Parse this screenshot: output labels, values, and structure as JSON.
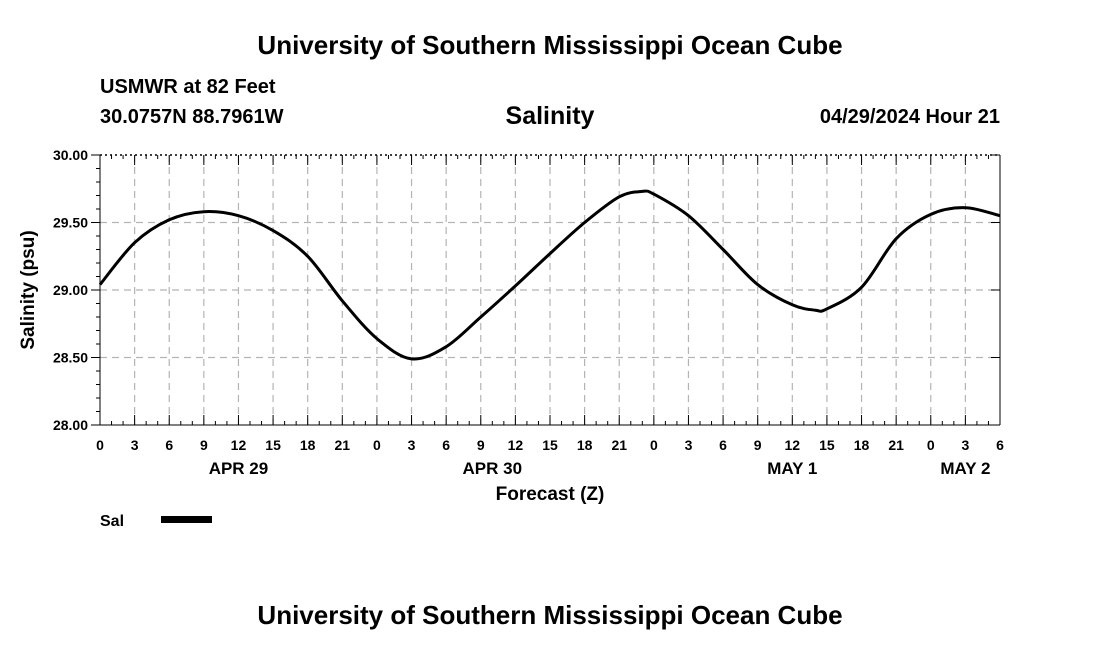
{
  "header": {
    "title": "University of Southern Mississippi Ocean Cube",
    "station": "USMWR at 82 Feet",
    "coords": "30.0757N  88.7961W",
    "datetime": "04/29/2024 Hour 21",
    "footer_title": "University of Southern Mississippi Ocean Cube"
  },
  "chart_data": {
    "type": "line",
    "title": "Salinity",
    "xlabel": "Forecast (Z)",
    "ylabel": "Salinity (psu)",
    "ylim": [
      28.0,
      30.0
    ],
    "xlim": [
      0,
      78
    ],
    "y_ticks": [
      "28.00",
      "28.50",
      "29.00",
      "29.50",
      "30.00"
    ],
    "x_tick_labels": [
      "0",
      "3",
      "6",
      "9",
      "12",
      "15",
      "18",
      "21",
      "0",
      "3",
      "6",
      "9",
      "12",
      "15",
      "18",
      "21",
      "0",
      "3",
      "6",
      "9",
      "12",
      "15",
      "18",
      "21",
      "0",
      "3",
      "6"
    ],
    "date_labels": [
      {
        "label": "APR 29",
        "hour": 12
      },
      {
        "label": "APR 30",
        "hour": 34
      },
      {
        "label": "MAY 1",
        "hour": 60
      },
      {
        "label": "MAY 2",
        "hour": 75
      }
    ],
    "grid": true,
    "series": [
      {
        "name": "Sal",
        "color": "#000000",
        "x": [
          0,
          3,
          6,
          9,
          12,
          15,
          18,
          21,
          24,
          27,
          30,
          33,
          36,
          39,
          42,
          45,
          47,
          48,
          51,
          54,
          57,
          60,
          62,
          63,
          66,
          69,
          72,
          75,
          78
        ],
        "values": [
          29.04,
          29.35,
          29.52,
          29.58,
          29.55,
          29.44,
          29.25,
          28.92,
          28.64,
          28.49,
          28.58,
          28.8,
          29.03,
          29.27,
          29.5,
          29.69,
          29.73,
          29.71,
          29.55,
          29.3,
          29.04,
          28.89,
          28.85,
          28.86,
          29.02,
          29.38,
          29.56,
          29.61,
          29.55
        ]
      }
    ],
    "legend": {
      "label": "Sal",
      "position": "bottom-left"
    }
  }
}
